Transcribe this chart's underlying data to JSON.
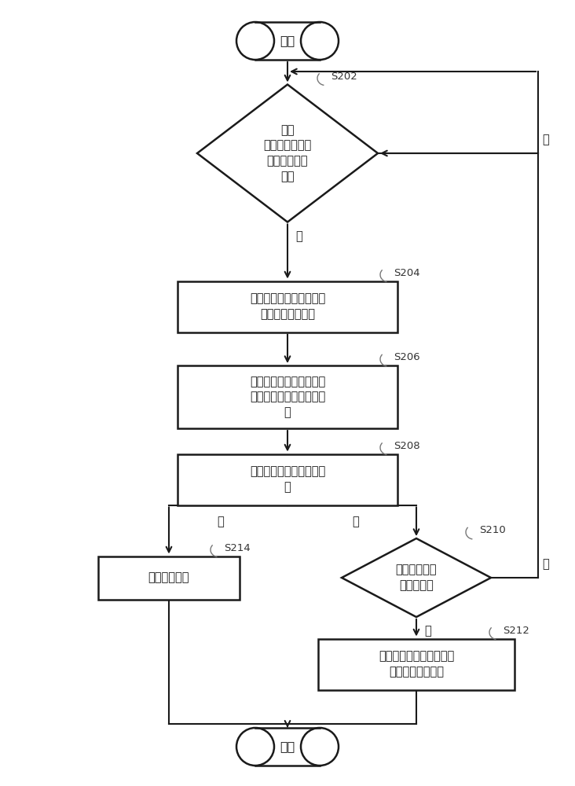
{
  "bg_color": "#ffffff",
  "line_color": "#1a1a1a",
  "text_color": "#1a1a1a",
  "fs_main": 10.5,
  "fs_label": 9.5,
  "fs_step": 9.5,
  "start_text": "开始",
  "end_text": "结束",
  "s202_text": "查询\n在目标存储器中\n是否存储缓存\n数据",
  "s204_text": "读取表示缓存数据的缓存\n时间的第一时间戳",
  "s206_text": "计算第一时间戳与表示当\n前时间的第二时间戳的差\n值",
  "s208_text": "比较差值与预设差值的大\n小",
  "s214_text": "清除缓存数据",
  "s210_text": "判断缓存数据\n是否被调用",
  "s212_text": "将缓存数据的第一时间戳\n更新为第二时间戳",
  "label_202": "S202",
  "label_204": "S204",
  "label_206": "S206",
  "label_208": "S208",
  "label_210": "S210",
  "label_212": "S212",
  "label_214": "S214",
  "yes_text": "是",
  "no_text": "否",
  "big_text": "大",
  "small_text": "小"
}
